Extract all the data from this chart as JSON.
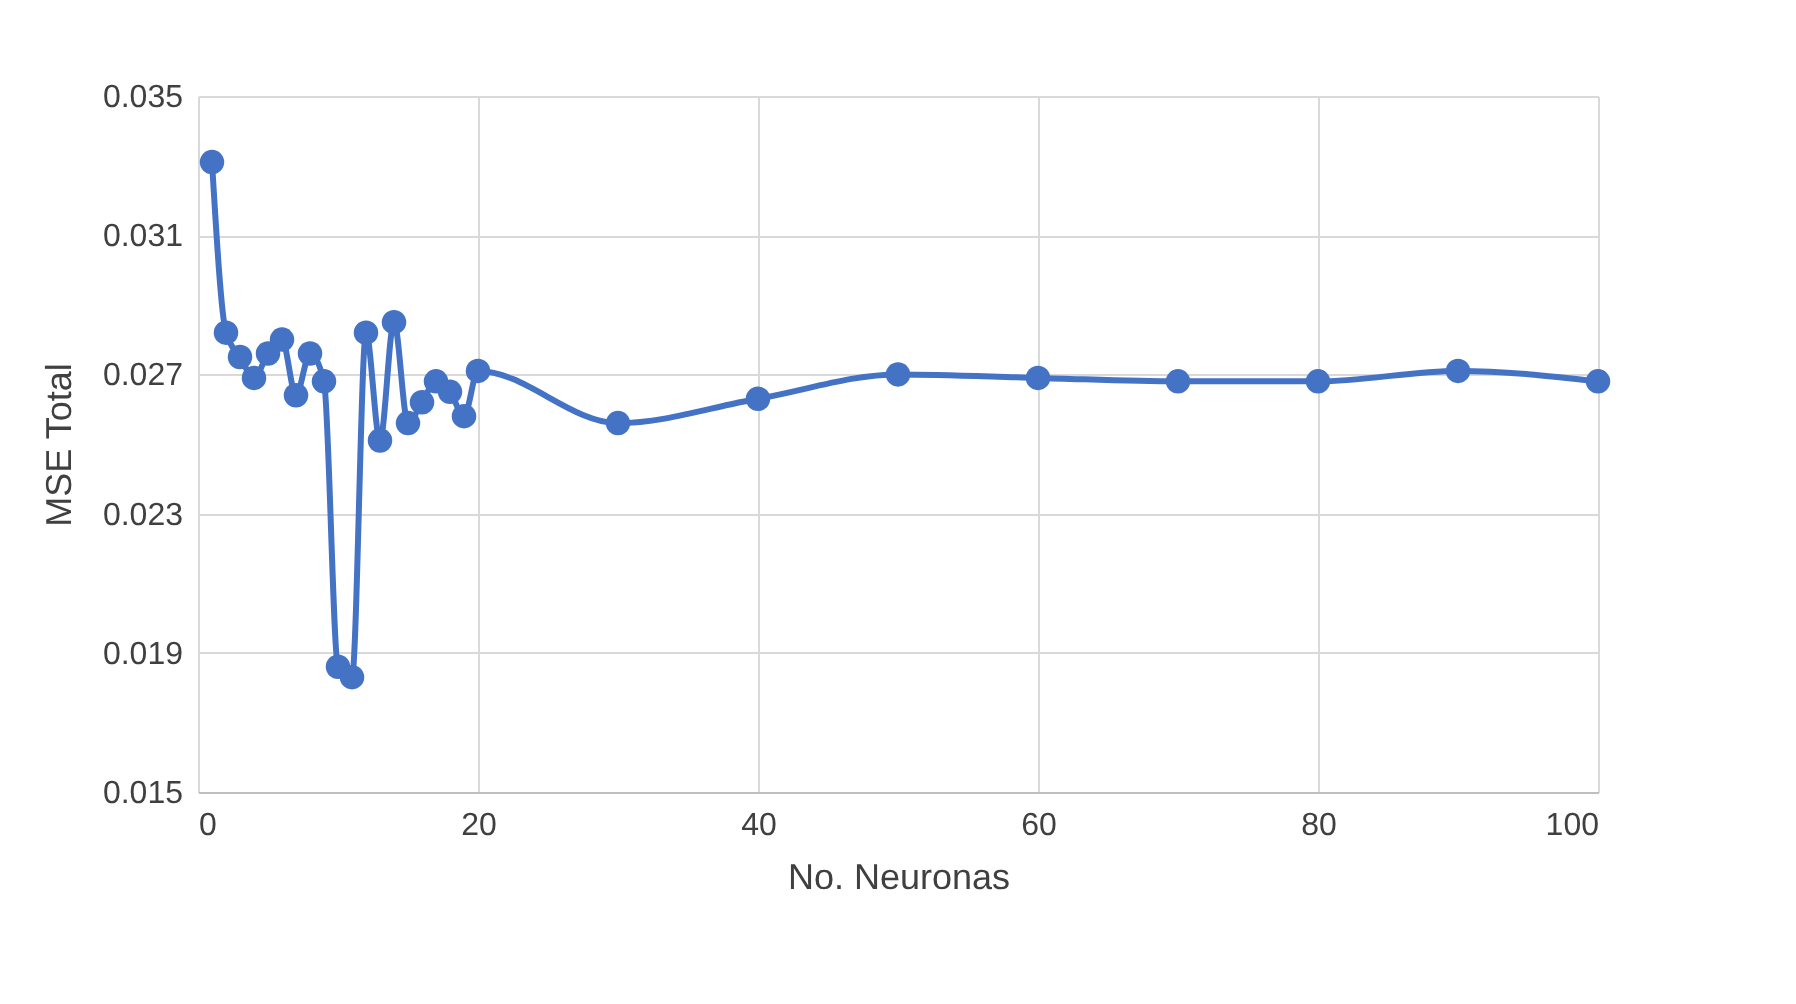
{
  "chart_data": {
    "type": "line",
    "xlabel": "No. Neuronas",
    "ylabel": "MSE Total",
    "x": [
      1,
      2,
      3,
      4,
      5,
      6,
      7,
      8,
      9,
      10,
      11,
      12,
      13,
      14,
      15,
      16,
      17,
      18,
      19,
      20,
      30,
      40,
      50,
      60,
      70,
      80,
      90,
      100
    ],
    "series": [
      {
        "color": "#4472c4",
        "values": [
          0.0331,
          0.0282,
          0.0275,
          0.0269,
          0.0276,
          0.028,
          0.0264,
          0.0276,
          0.0268,
          0.0186,
          0.0183,
          0.0282,
          0.0251,
          0.0285,
          0.0256,
          0.0262,
          0.0268,
          0.0265,
          0.0258,
          0.0271,
          0.0256,
          0.0263,
          0.027,
          0.0269,
          0.0268,
          0.0268,
          0.0271,
          0.0268
        ]
      }
    ],
    "xlim": [
      0,
      100
    ],
    "xticks": [
      0,
      20,
      40,
      60,
      80,
      100
    ],
    "ylim": [
      0.015,
      0.035
    ],
    "yticks": [
      0.015,
      0.019,
      0.023,
      0.027,
      0.031,
      0.035
    ],
    "grid": true,
    "marker": "circle",
    "line_style": "solid"
  }
}
